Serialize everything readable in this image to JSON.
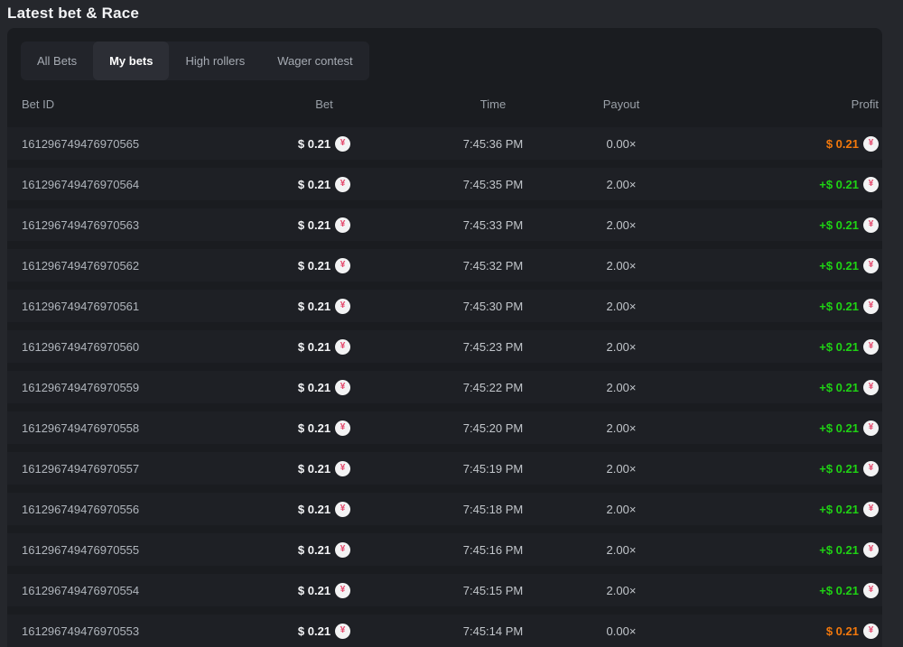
{
  "page": {
    "title": "Latest bet & Race"
  },
  "tabs": {
    "items": [
      {
        "id": "all-bets",
        "label": "All Bets",
        "active": false
      },
      {
        "id": "my-bets",
        "label": "My bets",
        "active": true
      },
      {
        "id": "high-rollers",
        "label": "High rollers",
        "active": false
      },
      {
        "id": "wager-contest",
        "label": "Wager contest",
        "active": false
      }
    ]
  },
  "table": {
    "columns": [
      "Bet ID",
      "Bet",
      "Time",
      "Payout",
      "Profit"
    ],
    "rows": [
      {
        "bet_id": "161296749476970565",
        "bet": "$ 0.21",
        "time": "7:45:36 PM",
        "payout": "0.00×",
        "profit": "$ 0.21",
        "result": "loss"
      },
      {
        "bet_id": "161296749476970564",
        "bet": "$ 0.21",
        "time": "7:45:35 PM",
        "payout": "2.00×",
        "profit": "+$ 0.21",
        "result": "win"
      },
      {
        "bet_id": "161296749476970563",
        "bet": "$ 0.21",
        "time": "7:45:33 PM",
        "payout": "2.00×",
        "profit": "+$ 0.21",
        "result": "win"
      },
      {
        "bet_id": "161296749476970562",
        "bet": "$ 0.21",
        "time": "7:45:32 PM",
        "payout": "2.00×",
        "profit": "+$ 0.21",
        "result": "win"
      },
      {
        "bet_id": "161296749476970561",
        "bet": "$ 0.21",
        "time": "7:45:30 PM",
        "payout": "2.00×",
        "profit": "+$ 0.21",
        "result": "win"
      },
      {
        "bet_id": "161296749476970560",
        "bet": "$ 0.21",
        "time": "7:45:23 PM",
        "payout": "2.00×",
        "profit": "+$ 0.21",
        "result": "win"
      },
      {
        "bet_id": "161296749476970559",
        "bet": "$ 0.21",
        "time": "7:45:22 PM",
        "payout": "2.00×",
        "profit": "+$ 0.21",
        "result": "win"
      },
      {
        "bet_id": "161296749476970558",
        "bet": "$ 0.21",
        "time": "7:45:20 PM",
        "payout": "2.00×",
        "profit": "+$ 0.21",
        "result": "win"
      },
      {
        "bet_id": "161296749476970557",
        "bet": "$ 0.21",
        "time": "7:45:19 PM",
        "payout": "2.00×",
        "profit": "+$ 0.21",
        "result": "win"
      },
      {
        "bet_id": "161296749476970556",
        "bet": "$ 0.21",
        "time": "7:45:18 PM",
        "payout": "2.00×",
        "profit": "+$ 0.21",
        "result": "win"
      },
      {
        "bet_id": "161296749476970555",
        "bet": "$ 0.21",
        "time": "7:45:16 PM",
        "payout": "2.00×",
        "profit": "+$ 0.21",
        "result": "win"
      },
      {
        "bet_id": "161296749476970554",
        "bet": "$ 0.21",
        "time": "7:45:15 PM",
        "payout": "2.00×",
        "profit": "+$ 0.21",
        "result": "win"
      },
      {
        "bet_id": "161296749476970553",
        "bet": "$ 0.21",
        "time": "7:45:14 PM",
        "payout": "0.00×",
        "profit": "$ 0.21",
        "result": "loss"
      }
    ]
  },
  "icons": {
    "coin": "jpy-coin-icon",
    "coin_symbol": "¥"
  },
  "colors": {
    "page_bg": "#25272c",
    "panel_bg": "#1a1c20",
    "row_bg": "#1e2025",
    "tabs_bg": "#22242a",
    "active_tab_bg": "#2c2e35",
    "profit_win": "#1fd214",
    "profit_loss": "#f2780c",
    "coin_bg": "#f3f3f4",
    "coin_symbol_color": "#e5476b"
  }
}
